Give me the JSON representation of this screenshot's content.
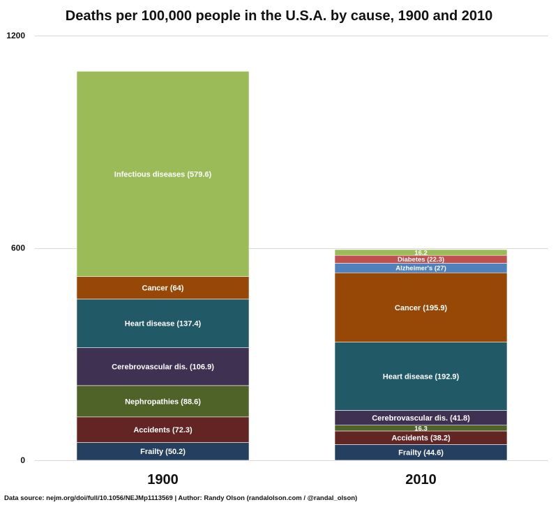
{
  "chart_data": {
    "type": "bar",
    "stacked": true,
    "title": "Deaths per 100,000 people in the U.S.A. by cause, 1900 and 2010",
    "categories": [
      "1900",
      "2010"
    ],
    "ylim": [
      0,
      1200
    ],
    "yticks": [
      0,
      600,
      1200
    ],
    "grid": true,
    "stacks": [
      {
        "category": "1900",
        "segments": [
          {
            "name": "Frailty",
            "value": 50.2,
            "label": "Frailty (50.2)",
            "color": "#243F60"
          },
          {
            "name": "Accidents",
            "value": 72.3,
            "label": "Accidents (72.3)",
            "color": "#632523"
          },
          {
            "name": "Nephropathies",
            "value": 88.6,
            "label": "Nephropathies (88.6)",
            "color": "#4F6228"
          },
          {
            "name": "Cerebrovascular dis.",
            "value": 106.9,
            "label": "Cerebrovascular dis. (106.9)",
            "color": "#3F3151"
          },
          {
            "name": "Heart disease",
            "value": 137.4,
            "label": "Heart disease (137.4)",
            "color": "#215967"
          },
          {
            "name": "Cancer",
            "value": 64,
            "label": "Cancer (64)",
            "color": "#974806"
          },
          {
            "name": "Infectious diseases",
            "value": 579.6,
            "label": "Infectious diseases (579.6)",
            "color": "#9BBB59"
          }
        ]
      },
      {
        "category": "2010",
        "segments": [
          {
            "name": "Frailty",
            "value": 44.6,
            "label": "Frailty (44.6)",
            "color": "#243F60"
          },
          {
            "name": "Accidents",
            "value": 38.2,
            "label": "Accidents (38.2)",
            "color": "#632523"
          },
          {
            "name": "Nephropathies",
            "value": 16.3,
            "label": "16.3",
            "color": "#4F6228"
          },
          {
            "name": "Cerebrovascular dis.",
            "value": 41.8,
            "label": "Cerebrovascular dis. (41.8)",
            "color": "#3F3151"
          },
          {
            "name": "Heart disease",
            "value": 192.9,
            "label": "Heart disease (192.9)",
            "color": "#215967"
          },
          {
            "name": "Cancer",
            "value": 195.9,
            "label": "Cancer (195.9)",
            "color": "#974806"
          },
          {
            "name": "Alzheimer's",
            "value": 27,
            "label": "Alzheimer's (27)",
            "color": "#4F81BD"
          },
          {
            "name": "Diabetes",
            "value": 22.3,
            "label": "Diabetes (22.3)",
            "color": "#C0504D"
          },
          {
            "name": "Infectious diseases",
            "value": 16.2,
            "label": "16.2",
            "color": "#9BBB59"
          }
        ]
      }
    ]
  },
  "footer": {
    "source": "Data source: nejm.org/doi/full/10.1056/NEJMp1113569 | Author: Randy Olson (randalolson.com / @randal_olson)"
  },
  "colors": {
    "gridline": "#D9D9D9",
    "text": "#111111",
    "label_text": "#FFFFFF"
  }
}
